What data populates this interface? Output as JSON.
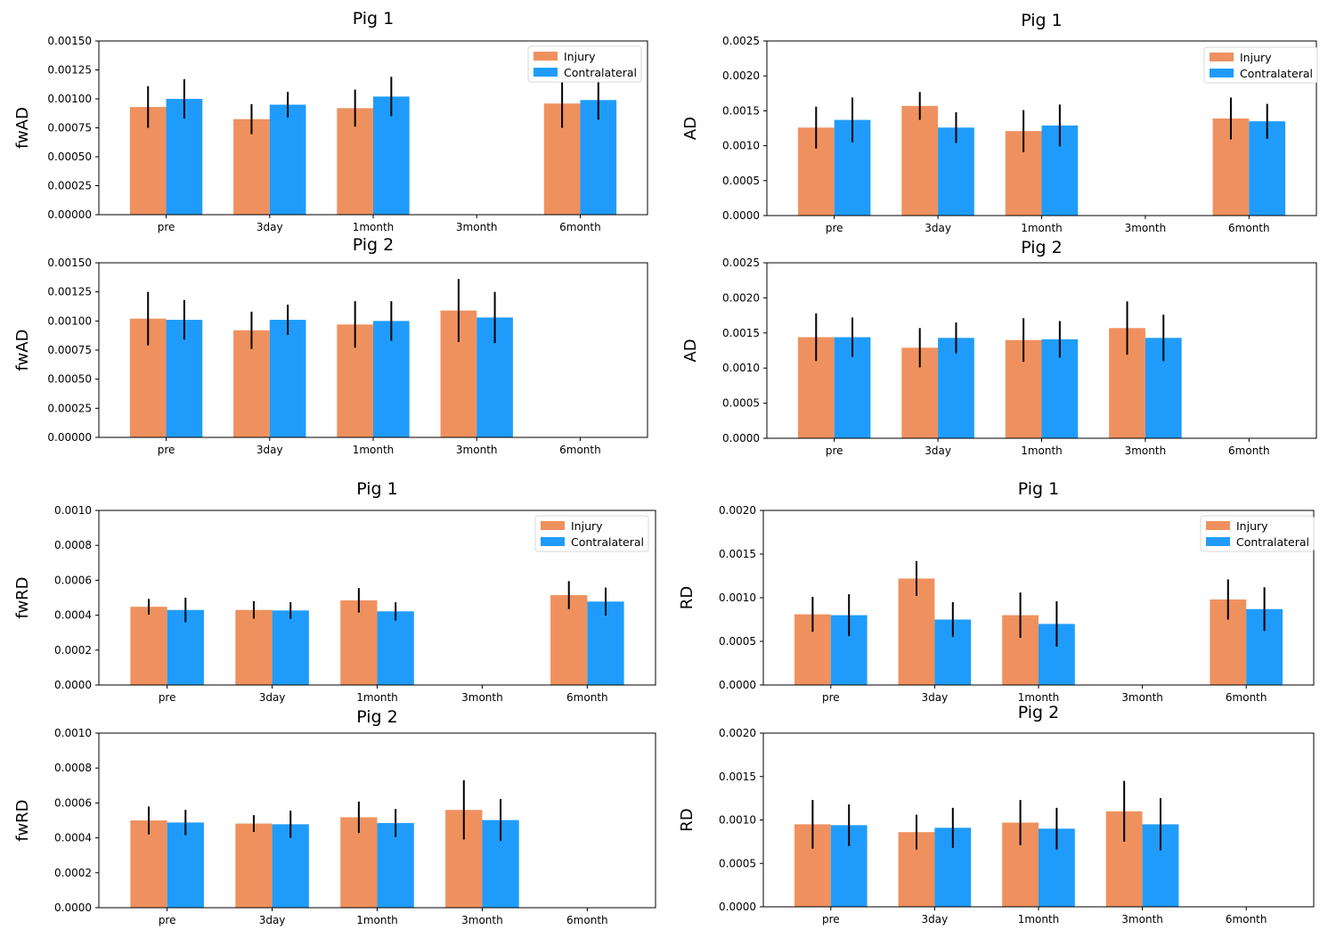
{
  "colors": {
    "injury": "#ef915e",
    "contralateral": "#1f9cfb",
    "error_bar": "#000000",
    "axes": "#000000"
  },
  "chart_data": [
    {
      "id": "p1",
      "type": "bar",
      "title": "Pig 1",
      "xlabel": "",
      "ylabel": "fwAD",
      "categories": [
        "pre",
        "3day",
        "1month",
        "3month",
        "6month"
      ],
      "ylim": [
        0,
        0.0015
      ],
      "y_ticks": [
        0,
        0.00025,
        0.0005,
        0.00075,
        0.001,
        0.00125,
        0.0015
      ],
      "y_tick_labels": [
        "0.00000",
        "0.00025",
        "0.00050",
        "0.00075",
        "0.00100",
        "0.00125",
        "0.00150"
      ],
      "legend": {
        "position": "top-right",
        "entries": [
          "Injury",
          "Contralateral"
        ]
      },
      "series": [
        {
          "name": "Injury",
          "values": [
            0.00093,
            0.000825,
            0.00092,
            null,
            0.00096
          ],
          "errors": [
            0.00018,
            0.00013,
            0.00016,
            null,
            0.00021
          ]
        },
        {
          "name": "Contralateral",
          "values": [
            0.001,
            0.00095,
            0.00102,
            null,
            0.00099
          ],
          "errors": [
            0.00017,
            0.00011,
            0.00017,
            null,
            0.00017
          ]
        }
      ]
    },
    {
      "id": "p2",
      "type": "bar",
      "title": "Pig 1",
      "xlabel": "",
      "ylabel": "AD",
      "categories": [
        "pre",
        "3day",
        "1month",
        "3month",
        "6month"
      ],
      "ylim": [
        0,
        0.0025
      ],
      "y_ticks": [
        0,
        0.0005,
        0.001,
        0.0015,
        0.002,
        0.0025
      ],
      "y_tick_labels": [
        "0.0000",
        "0.0005",
        "0.0010",
        "0.0015",
        "0.0020",
        "0.0025"
      ],
      "legend": {
        "position": "top-right",
        "entries": [
          "Injury",
          "Contralateral"
        ]
      },
      "series": [
        {
          "name": "Injury",
          "values": [
            0.00126,
            0.00157,
            0.00121,
            null,
            0.00139
          ],
          "errors": [
            0.0003,
            0.0002,
            0.0003,
            null,
            0.0003
          ]
        },
        {
          "name": "Contralateral",
          "values": [
            0.00137,
            0.00126,
            0.00129,
            null,
            0.00135
          ],
          "errors": [
            0.00032,
            0.00022,
            0.0003,
            null,
            0.00025
          ]
        }
      ]
    },
    {
      "id": "p3",
      "type": "bar",
      "title": "Pig 2",
      "xlabel": "",
      "ylabel": "fwAD",
      "categories": [
        "pre",
        "3day",
        "1month",
        "3month",
        "6month"
      ],
      "ylim": [
        0,
        0.0015
      ],
      "y_ticks": [
        0,
        0.00025,
        0.0005,
        0.00075,
        0.001,
        0.00125,
        0.0015
      ],
      "y_tick_labels": [
        "0.00000",
        "0.00025",
        "0.00050",
        "0.00075",
        "0.00100",
        "0.00125",
        "0.00150"
      ],
      "series": [
        {
          "name": "Injury",
          "values": [
            0.00102,
            0.00092,
            0.00097,
            0.00109,
            null
          ],
          "errors": [
            0.00023,
            0.00016,
            0.0002,
            0.00027,
            null
          ]
        },
        {
          "name": "Contralateral",
          "values": [
            0.00101,
            0.00101,
            0.001,
            0.00103,
            null
          ],
          "errors": [
            0.00017,
            0.00013,
            0.00017,
            0.00022,
            null
          ]
        }
      ]
    },
    {
      "id": "p4",
      "type": "bar",
      "title": "Pig 2",
      "xlabel": "",
      "ylabel": "AD",
      "categories": [
        "pre",
        "3day",
        "1month",
        "3month",
        "6month"
      ],
      "ylim": [
        0,
        0.0025
      ],
      "y_ticks": [
        0,
        0.0005,
        0.001,
        0.0015,
        0.002,
        0.0025
      ],
      "y_tick_labels": [
        "0.0000",
        "0.0005",
        "0.0010",
        "0.0015",
        "0.0020",
        "0.0025"
      ],
      "series": [
        {
          "name": "Injury",
          "values": [
            0.00144,
            0.00129,
            0.0014,
            0.00157,
            null
          ],
          "errors": [
            0.00034,
            0.00028,
            0.00031,
            0.00038,
            null
          ]
        },
        {
          "name": "Contralateral",
          "values": [
            0.00144,
            0.00143,
            0.00141,
            0.00143,
            null
          ],
          "errors": [
            0.00028,
            0.00022,
            0.00026,
            0.00033,
            null
          ]
        }
      ]
    },
    {
      "id": "p5",
      "type": "bar",
      "title": "Pig 1",
      "xlabel": "",
      "ylabel": "fwRD",
      "categories": [
        "pre",
        "3day",
        "1month",
        "3month",
        "6month"
      ],
      "ylim": [
        0,
        0.001
      ],
      "y_ticks": [
        0,
        0.0002,
        0.0004,
        0.0006,
        0.0008,
        0.001
      ],
      "y_tick_labels": [
        "0.0000",
        "0.0002",
        "0.0004",
        "0.0006",
        "0.0008",
        "0.0010"
      ],
      "legend": {
        "position": "top-right",
        "entries": [
          "Injury",
          "Contralateral"
        ]
      },
      "series": [
        {
          "name": "Injury",
          "values": [
            0.000448,
            0.00043,
            0.000485,
            null,
            0.000515
          ],
          "errors": [
            4.5e-05,
            5e-05,
            7e-05,
            null,
            8e-05
          ]
        },
        {
          "name": "Contralateral",
          "values": [
            0.00043,
            0.000427,
            0.000422,
            null,
            0.000478
          ],
          "errors": [
            7e-05,
            4.8e-05,
            5.2e-05,
            null,
            8e-05
          ]
        }
      ]
    },
    {
      "id": "p6",
      "type": "bar",
      "title": "Pig 1",
      "xlabel": "",
      "ylabel": "RD",
      "categories": [
        "pre",
        "3day",
        "1month",
        "3month",
        "6month"
      ],
      "ylim": [
        0,
        0.002
      ],
      "y_ticks": [
        0,
        0.0005,
        0.001,
        0.0015,
        0.002
      ],
      "y_tick_labels": [
        "0.0000",
        "0.0005",
        "0.0010",
        "0.0015",
        "0.0020"
      ],
      "legend": {
        "position": "top-right",
        "entries": [
          "Injury",
          "Contralateral"
        ]
      },
      "series": [
        {
          "name": "Injury",
          "values": [
            0.00081,
            0.00122,
            0.0008,
            null,
            0.00098
          ],
          "errors": [
            0.0002,
            0.0002,
            0.00026,
            null,
            0.00023
          ]
        },
        {
          "name": "Contralateral",
          "values": [
            0.0008,
            0.00075,
            0.0007,
            null,
            0.00087
          ],
          "errors": [
            0.00024,
            0.0002,
            0.00026,
            null,
            0.00025
          ]
        }
      ]
    },
    {
      "id": "p7",
      "type": "bar",
      "title": "Pig 2",
      "xlabel": "",
      "ylabel": "fwRD",
      "categories": [
        "pre",
        "3day",
        "1month",
        "3month",
        "6month"
      ],
      "ylim": [
        0,
        0.001
      ],
      "y_ticks": [
        0,
        0.0002,
        0.0004,
        0.0006,
        0.0008,
        0.001
      ],
      "y_tick_labels": [
        "0.0000",
        "0.0002",
        "0.0004",
        "0.0006",
        "0.0008",
        "0.0010"
      ],
      "series": [
        {
          "name": "Injury",
          "values": [
            0.0005,
            0.000482,
            0.000518,
            0.00056,
            null
          ],
          "errors": [
            8e-05,
            4.8e-05,
            9e-05,
            0.00017,
            null
          ]
        },
        {
          "name": "Contralateral",
          "values": [
            0.000488,
            0.000478,
            0.000485,
            0.000502,
            null
          ],
          "errors": [
            7.2e-05,
            7.8e-05,
            8e-05,
            0.00012,
            null
          ]
        }
      ]
    },
    {
      "id": "p8",
      "type": "bar",
      "title": "Pig 2",
      "xlabel": "",
      "ylabel": "RD",
      "categories": [
        "pre",
        "3day",
        "1month",
        "3month",
        "6month"
      ],
      "ylim": [
        0,
        0.002
      ],
      "y_ticks": [
        0,
        0.0005,
        0.001,
        0.0015,
        0.002
      ],
      "y_tick_labels": [
        "0.0000",
        "0.0005",
        "0.0010",
        "0.0015",
        "0.0020"
      ],
      "series": [
        {
          "name": "Injury",
          "values": [
            0.00095,
            0.00086,
            0.00097,
            0.0011,
            null
          ],
          "errors": [
            0.00028,
            0.0002,
            0.00026,
            0.00035,
            null
          ]
        },
        {
          "name": "Contralateral",
          "values": [
            0.00094,
            0.00091,
            0.0009,
            0.00095,
            null
          ],
          "errors": [
            0.00024,
            0.00023,
            0.00024,
            0.0003,
            null
          ]
        }
      ]
    }
  ]
}
